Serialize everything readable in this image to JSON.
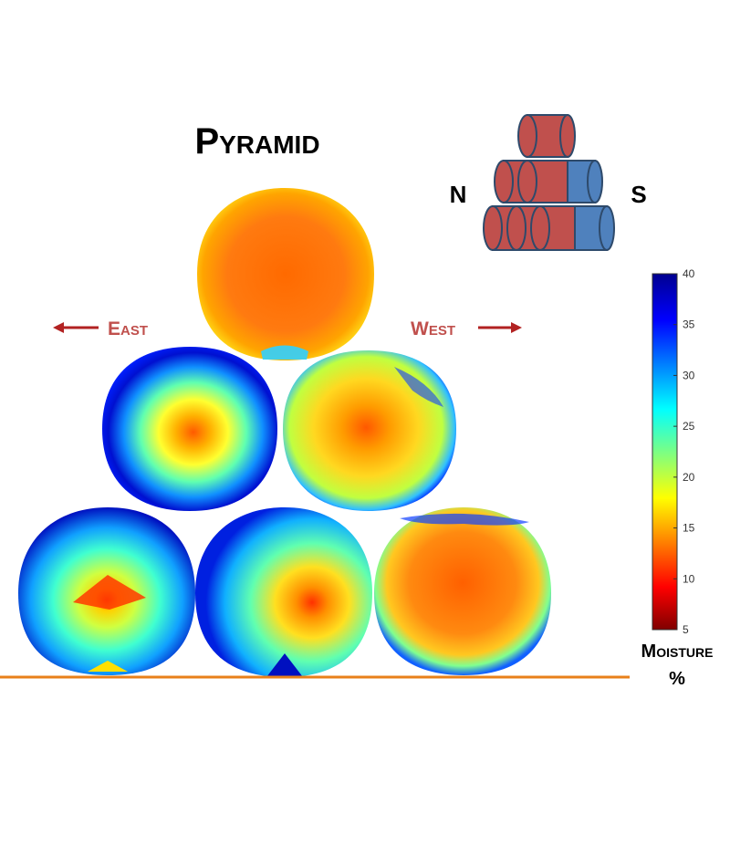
{
  "title": "Pyramid",
  "orientation": {
    "north_label": "N",
    "south_label": "S",
    "east_label": "East",
    "west_label": "West"
  },
  "colorbar": {
    "ticks": [
      "40",
      "35",
      "30",
      "25",
      "20",
      "15",
      "10",
      "5"
    ],
    "label_line1": "Moisture",
    "label_line2": "%",
    "min": 5,
    "max": 40,
    "colormap": "jet"
  },
  "legend_colors": {
    "north_bale": "#C0504D",
    "south_bale": "#4F81BD",
    "arrow": "#B22222",
    "ground": "#E8801A"
  },
  "bales": [
    {
      "id": "top",
      "row": 1,
      "pattern": "uniformly dry"
    },
    {
      "id": "middle-east",
      "row": 2,
      "pattern": "dry core, wet rim"
    },
    {
      "id": "middle-west",
      "row": 2,
      "pattern": "dry core, moist rim"
    },
    {
      "id": "bottom-east",
      "row": 3,
      "pattern": "mostly wet, dry spot"
    },
    {
      "id": "bottom-center",
      "row": 3,
      "pattern": "moist, dry right"
    },
    {
      "id": "bottom-west",
      "row": 3,
      "pattern": "mostly dry"
    }
  ]
}
